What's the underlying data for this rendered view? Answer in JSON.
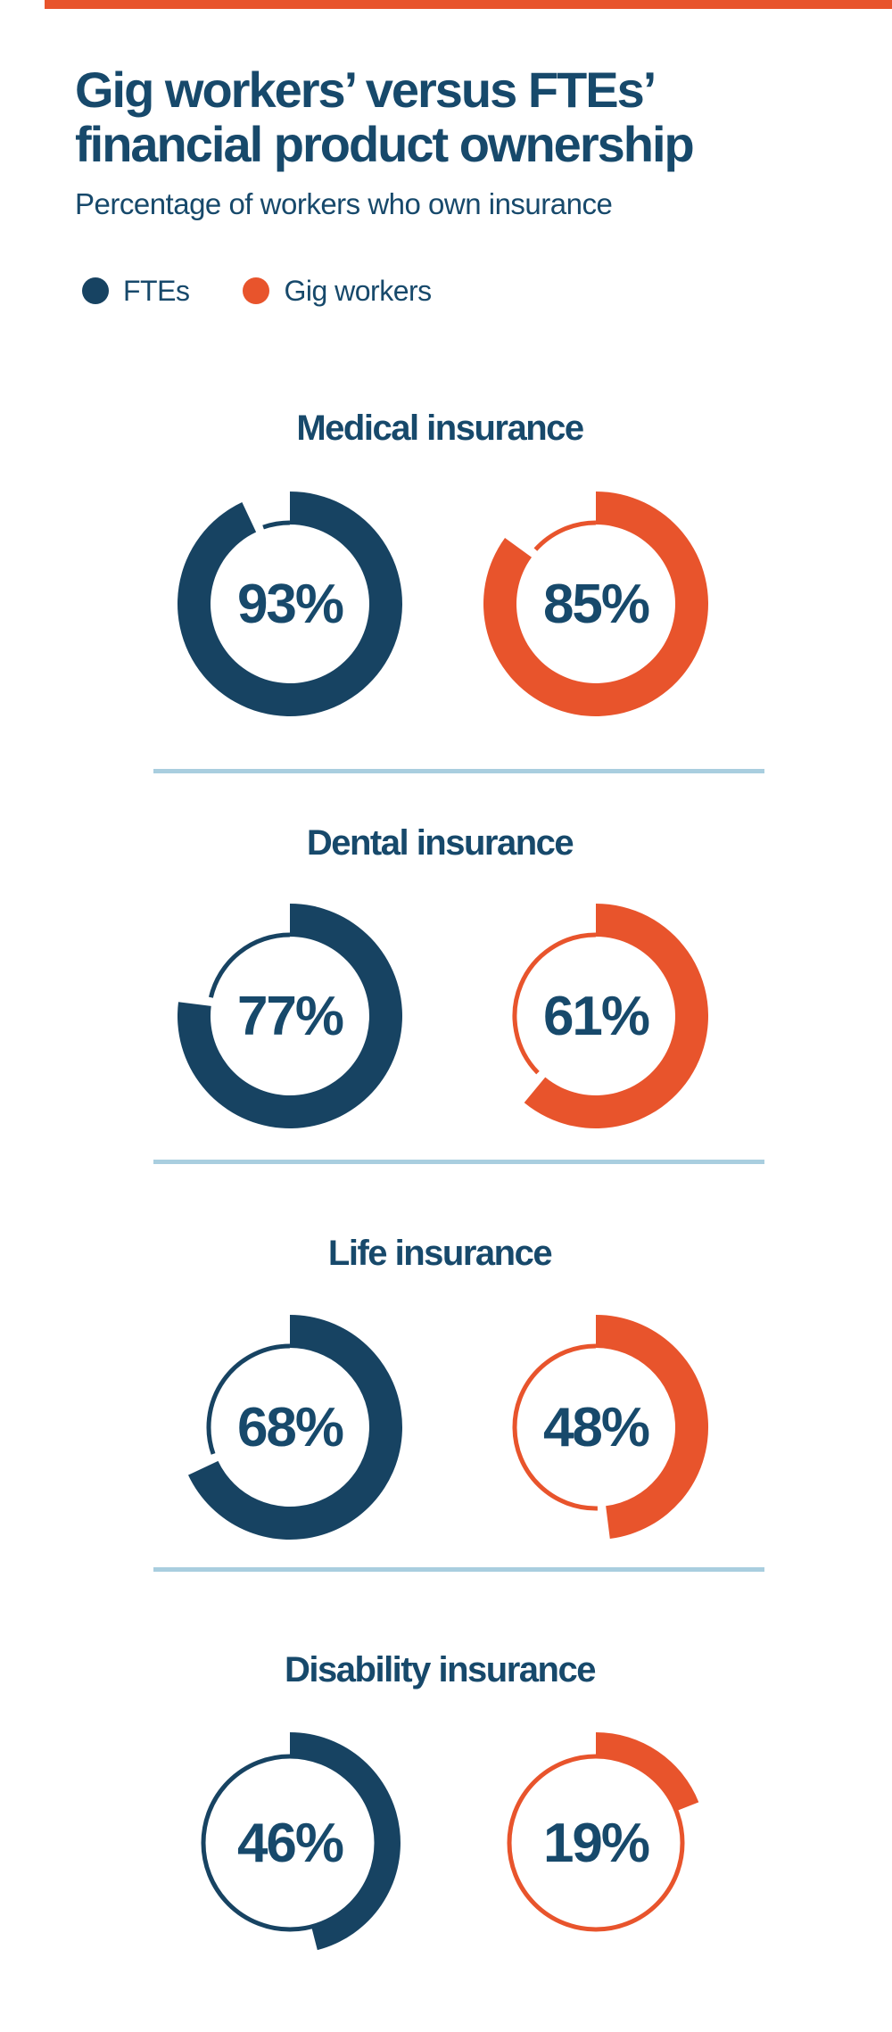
{
  "accent_bar": {
    "color": "#E8542C"
  },
  "header": {
    "title_line1": "Gig workers’ versus FTEs’",
    "title_line2": "financial product ownership",
    "subtitle": "Percentage of workers who own insurance"
  },
  "legend": {
    "items": [
      {
        "label": "FTEs",
        "color": "#174362"
      },
      {
        "label": "Gig workers",
        "color": "#E8542C"
      }
    ]
  },
  "sections": [
    {
      "title": "Medical insurance",
      "fte_label": "93%",
      "gig_label": "85%",
      "fte_value": 93,
      "gig_value": 85
    },
    {
      "title": "Dental insurance",
      "fte_label": "77%",
      "gig_label": "61%",
      "fte_value": 77,
      "gig_value": 61
    },
    {
      "title": "Life insurance",
      "fte_label": "68%",
      "gig_label": "48%",
      "fte_value": 68,
      "gig_value": 48
    },
    {
      "title": "Disability insurance",
      "fte_label": "46%",
      "gig_label": "19%",
      "fte_value": 46,
      "gig_value": 19
    }
  ],
  "chart_data": {
    "type": "donut",
    "title": "Gig workers’ versus FTEs’ financial product ownership",
    "subtitle": "Percentage of workers who own insurance",
    "categories": [
      "Medical insurance",
      "Dental insurance",
      "Life insurance",
      "Disability insurance"
    ],
    "series": [
      {
        "name": "FTEs",
        "color": "#174362",
        "values": [
          93,
          77,
          68,
          46
        ]
      },
      {
        "name": "Gig workers",
        "color": "#E8542C",
        "values": [
          85,
          61,
          48,
          19
        ]
      }
    ],
    "unit": "%",
    "value_range": [
      0,
      100
    ],
    "legend_position": "top-left",
    "layout": "one row per category, FTE donut left, Gig worker donut right"
  },
  "colors": {
    "navy": "#174362",
    "orange": "#E8542C",
    "text_navy": "#17496B",
    "divider_blue": "#A9CEDF",
    "background": "#FFFFFF"
  }
}
